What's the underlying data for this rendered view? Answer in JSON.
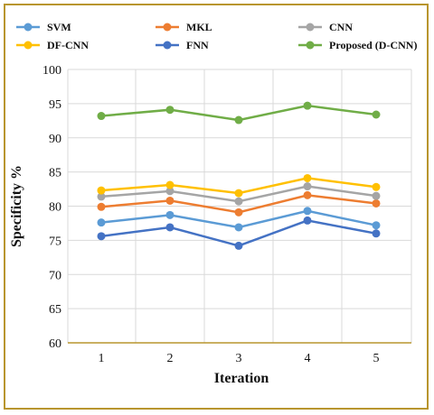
{
  "chart_data": {
    "type": "line",
    "title": "",
    "xlabel": "Iteration",
    "ylabel": "Specificity %",
    "x": [
      1,
      2,
      3,
      4,
      5
    ],
    "xtick_labels": [
      "1",
      "2",
      "3",
      "4",
      "5"
    ],
    "ylim": [
      60,
      100
    ],
    "yticks": [
      60,
      65,
      70,
      75,
      80,
      85,
      90,
      95,
      100
    ],
    "ytick_labels": [
      "60",
      "65",
      "70",
      "75",
      "80",
      "85",
      "90",
      "95",
      "100"
    ],
    "grid": true,
    "legend_position": "top",
    "series": [
      {
        "name": "SVM",
        "color": "#5b9bd5",
        "values": [
          77.6,
          78.7,
          76.9,
          79.3,
          77.2
        ]
      },
      {
        "name": "MKL",
        "color": "#ed7d31",
        "values": [
          79.9,
          80.8,
          79.1,
          81.6,
          80.4
        ]
      },
      {
        "name": "CNN",
        "color": "#a5a5a5",
        "values": [
          81.4,
          82.2,
          80.7,
          82.9,
          81.5
        ]
      },
      {
        "name": "DF-CNN",
        "color": "#ffc000",
        "values": [
          82.3,
          83.1,
          81.9,
          84.1,
          82.8
        ]
      },
      {
        "name": "FNN",
        "color": "#4472c4",
        "values": [
          75.6,
          76.9,
          74.2,
          77.9,
          76.0
        ]
      },
      {
        "name": "Proposed (D-CNN)",
        "color": "#70ad47",
        "values": [
          93.2,
          94.1,
          92.6,
          94.7,
          93.4
        ]
      }
    ]
  }
}
